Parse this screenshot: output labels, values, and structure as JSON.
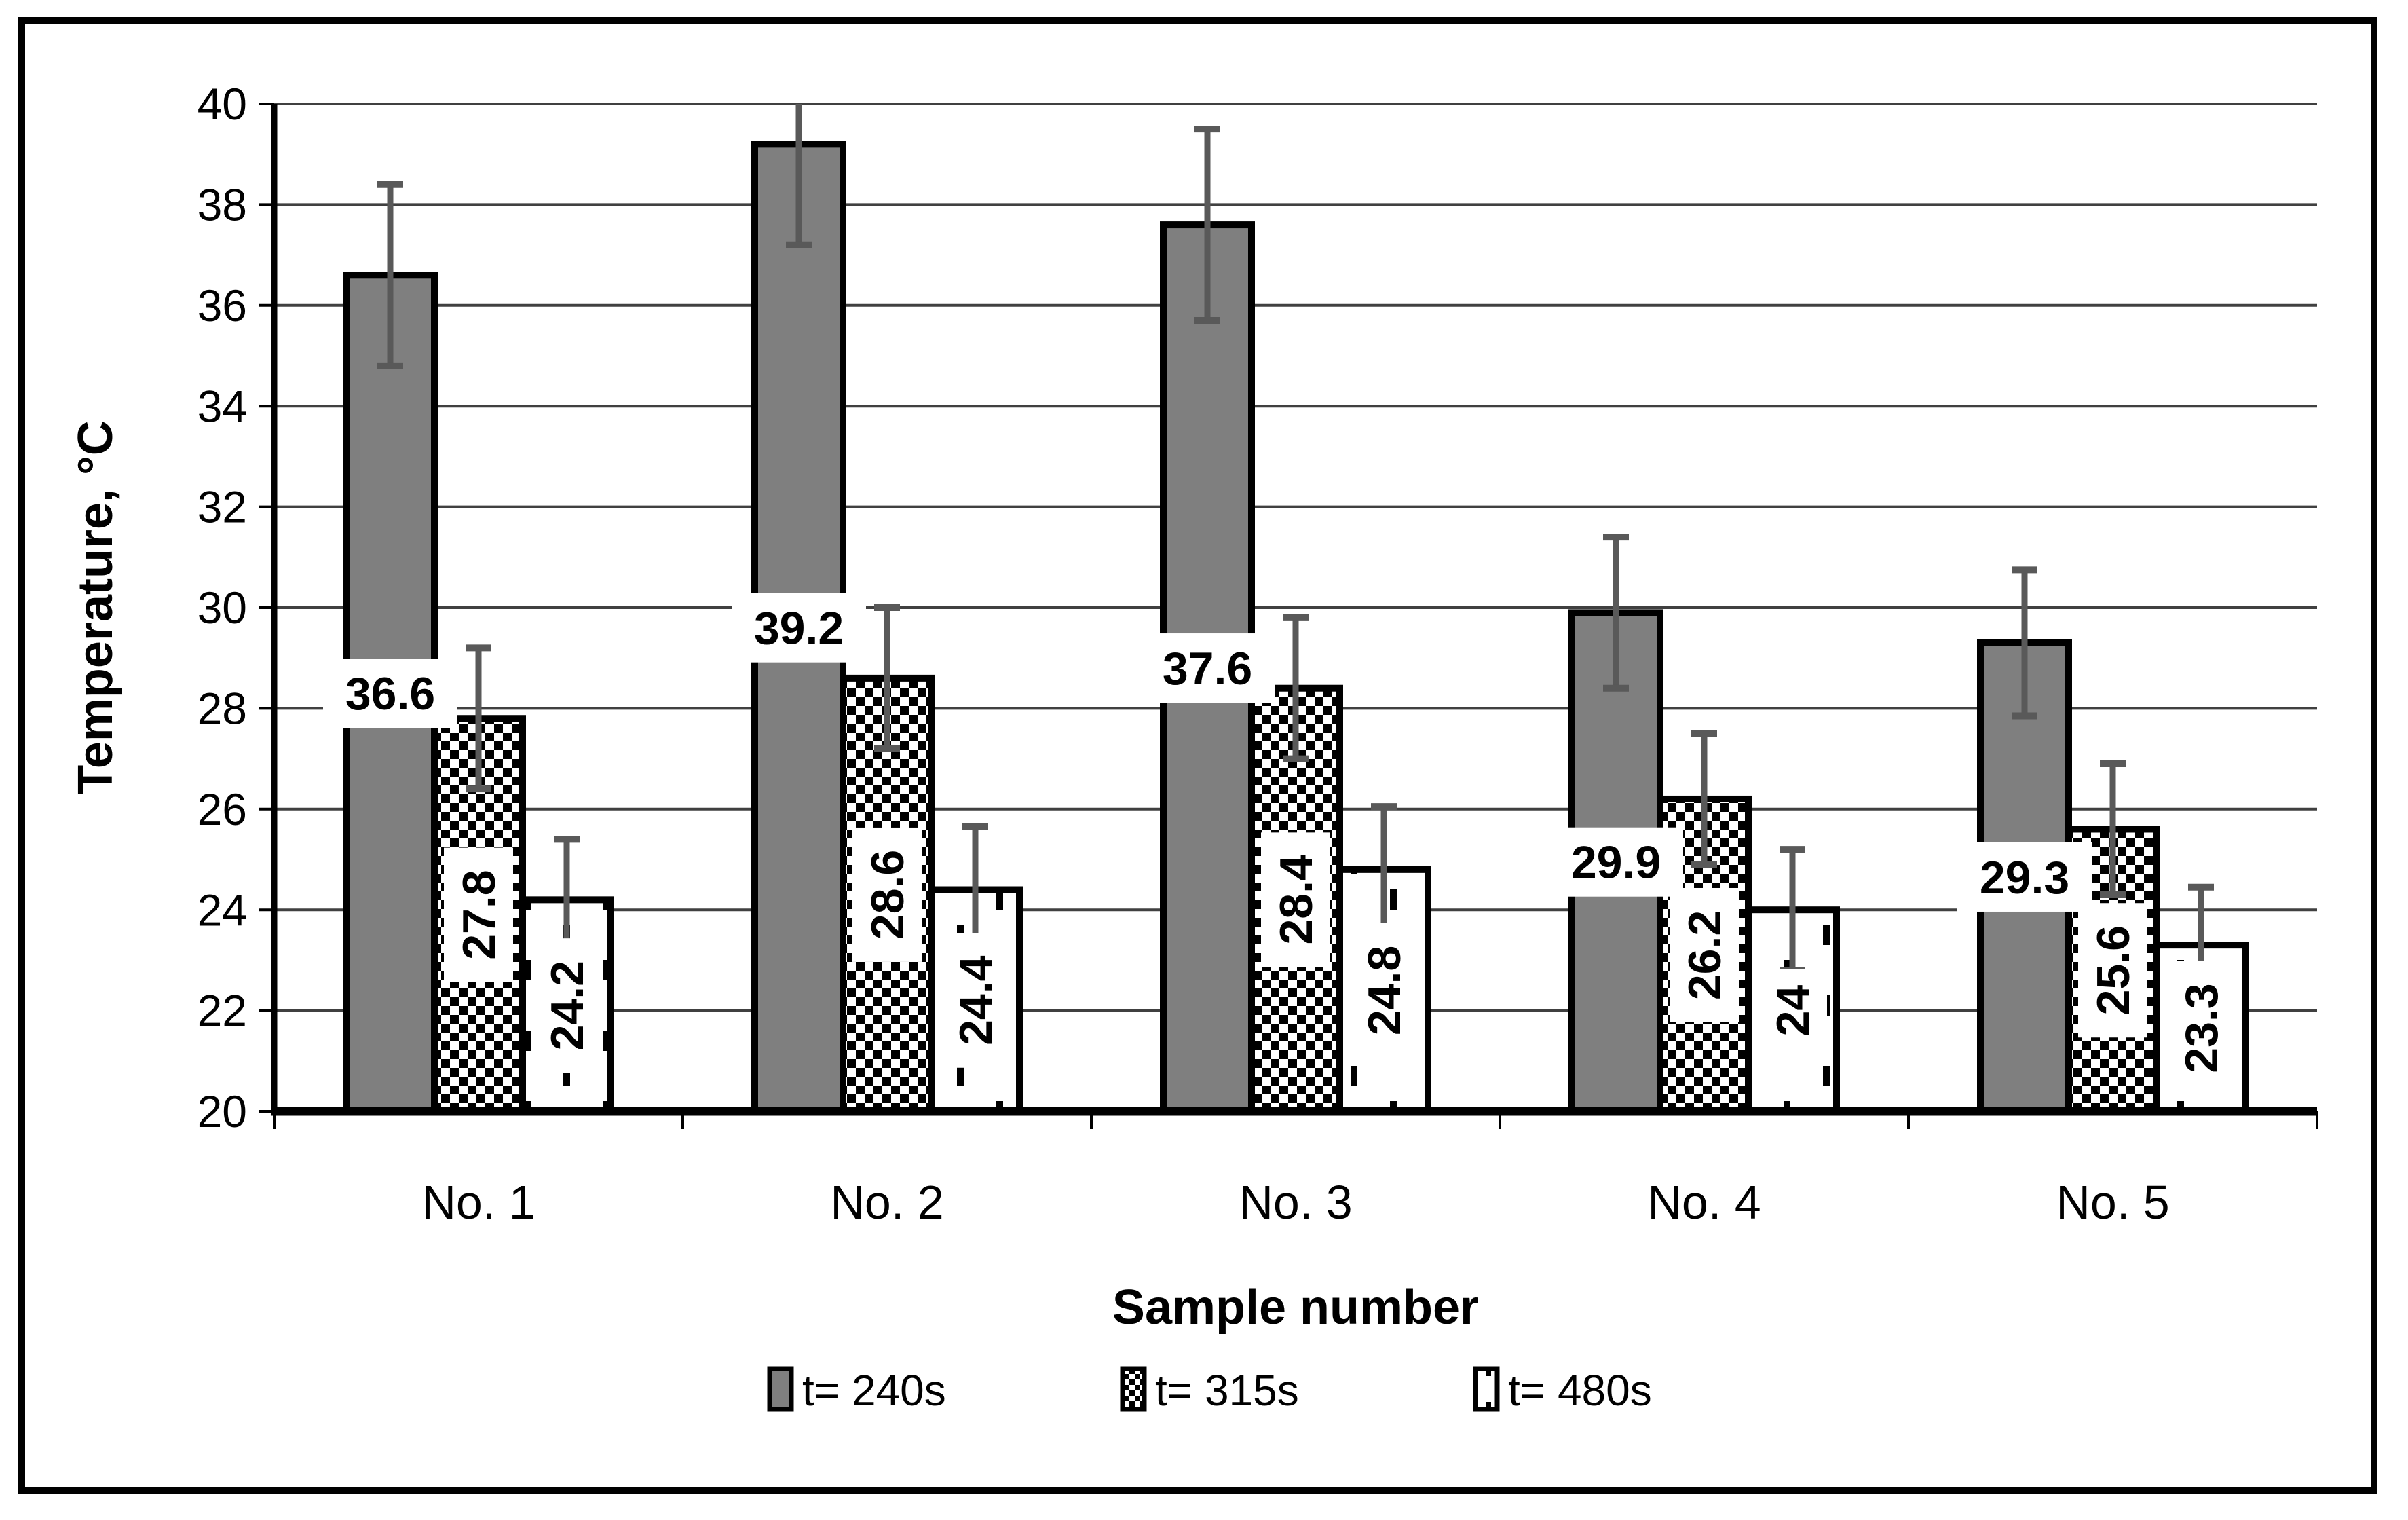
{
  "chart_data": {
    "type": "bar",
    "title": "",
    "xlabel": "Sample number",
    "ylabel": "Temperature, °C",
    "categories": [
      "No. 1",
      "No. 2",
      "No. 3",
      "No. 4",
      "No. 5"
    ],
    "series": [
      {
        "name": "t= 240s",
        "style": "solid-gray",
        "label_orientation": "horizontal",
        "values": [
          36.6,
          39.2,
          37.6,
          29.9,
          29.3
        ],
        "errors": [
          1.8,
          2.0,
          1.9,
          1.5,
          1.45
        ]
      },
      {
        "name": "t= 315s",
        "style": "checkerboard",
        "label_orientation": "vertical",
        "values": [
          27.8,
          28.6,
          28.4,
          26.2,
          25.6
        ],
        "errors": [
          1.4,
          1.4,
          1.4,
          1.3,
          1.3
        ]
      },
      {
        "name": "t= 480s",
        "style": "dashed-vertical",
        "label_orientation": "vertical",
        "values": [
          24.2,
          24.4,
          24.8,
          24,
          23.3
        ],
        "errors": [
          1.2,
          1.25,
          1.25,
          1.2,
          1.15
        ]
      }
    ],
    "data_labels": [
      [
        "36.6",
        "39.2",
        "37.6",
        "29.9",
        "29.3"
      ],
      [
        "27.8",
        "28.6",
        "28.4",
        "26.2",
        "25.6"
      ],
      [
        "24.2",
        "24.4",
        "24.8",
        "24",
        "23.3"
      ]
    ],
    "ylim": [
      20,
      40
    ],
    "ytick_step": 2,
    "yticks": [
      "20",
      "22",
      "24",
      "26",
      "28",
      "30",
      "32",
      "34",
      "36",
      "38",
      "40"
    ],
    "grid": true,
    "legend_position": "bottom",
    "error_bars": "both-directions-with-caps"
  },
  "colors": {
    "background": "#ffffff",
    "bar_gray": "#7f7f7f",
    "error_bar": "#595959",
    "gridline": "#404040",
    "axis": "#000000",
    "text": "#000000",
    "label_background": "#ffffff",
    "pattern_ink": "#000000"
  }
}
